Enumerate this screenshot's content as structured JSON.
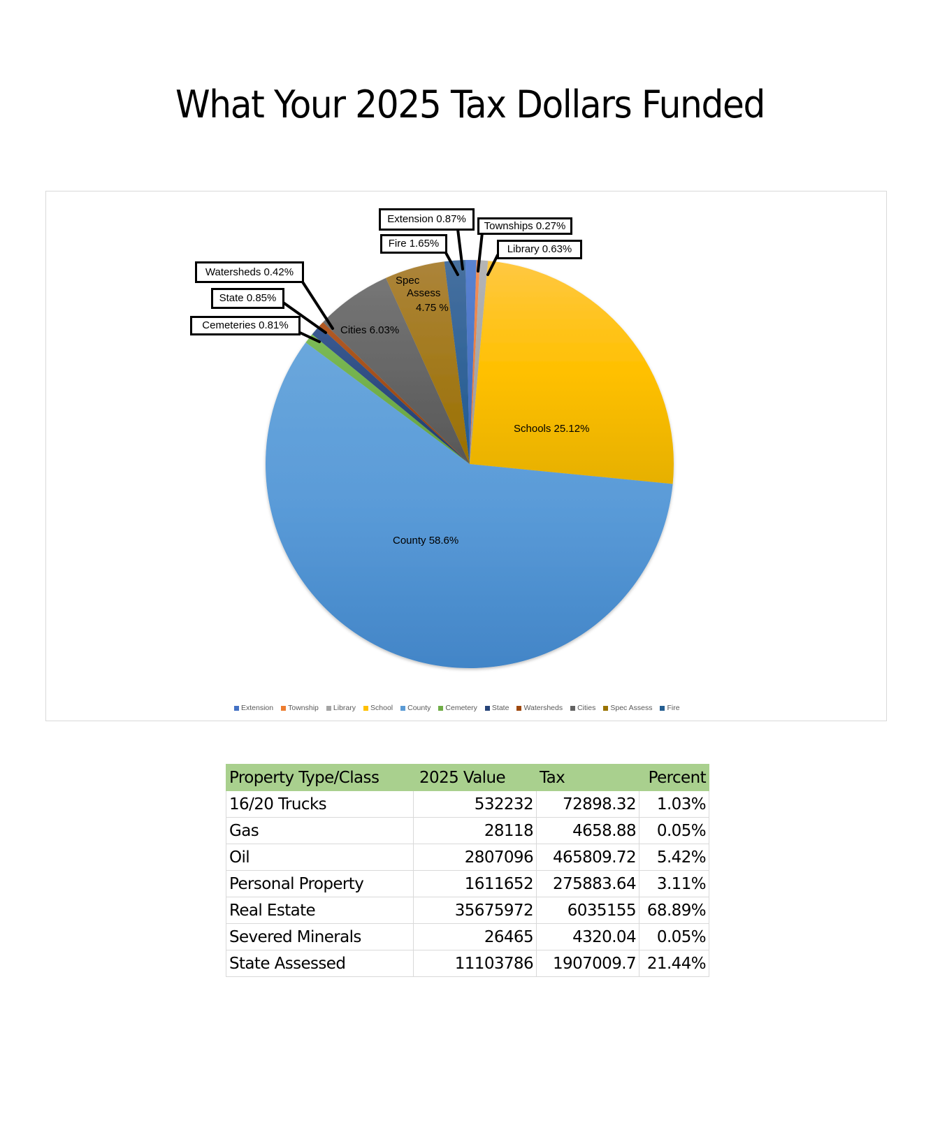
{
  "title": "What Your 2025 Tax Dollars Funded",
  "chart_data": {
    "type": "pie",
    "title": "What Your 2025 Tax Dollars Funded",
    "categories": [
      "Extension",
      "Township",
      "Library",
      "School",
      "County",
      "Cemetery",
      "State",
      "Watersheds",
      "Cities",
      "Spec Assess",
      "Fire"
    ],
    "values": [
      0.87,
      0.27,
      0.63,
      25.12,
      58.6,
      0.81,
      0.85,
      0.42,
      6.03,
      4.75,
      1.65
    ],
    "unit": "%",
    "colors": [
      "#4472C4",
      "#ED7D31",
      "#A5A5A5",
      "#FFC000",
      "#5B9BD5",
      "#70AD47",
      "#264478",
      "#9E480E",
      "#636363",
      "#997300",
      "#255E91"
    ],
    "data_labels": [
      "Extension 0.87%",
      "Townships 0.27%",
      "Library 0.63%",
      "Schools 25.12%",
      "County 58.6%",
      "Cemeteries 0.81%",
      "State 0.85%",
      "Watersheds 0.42%",
      "Cities 6.03%",
      "Spec Assess 4.75 %",
      "Fire 1.65%"
    ],
    "legend_position": "bottom",
    "legend": [
      "Extension",
      "Township",
      "Library",
      "School",
      "County",
      "Cemetery",
      "State",
      "Watersheds",
      "Cities",
      "Spec Assess",
      "Fire"
    ]
  },
  "labels": {
    "extension": "Extension 0.87%",
    "townships": "Townships 0.27%",
    "library": "Library 0.63%",
    "fire": "Fire 1.65%",
    "watersheds": "Watersheds 0.42%",
    "state": "State 0.85%",
    "cemeteries": "Cemeteries 0.81%",
    "cities": "Cities 6.03%",
    "spec_line1": "Spec",
    "spec_line2": "Assess",
    "spec_line3": "4.75 %",
    "schools": "Schools 25.12%",
    "county": "County 58.6%"
  },
  "legend": [
    {
      "label": "Extension",
      "color": "#4472C4"
    },
    {
      "label": "Township",
      "color": "#ED7D31"
    },
    {
      "label": "Library",
      "color": "#A5A5A5"
    },
    {
      "label": "School",
      "color": "#FFC000"
    },
    {
      "label": "County",
      "color": "#5B9BD5"
    },
    {
      "label": "Cemetery",
      "color": "#70AD47"
    },
    {
      "label": "State",
      "color": "#264478"
    },
    {
      "label": "Watersheds",
      "color": "#9E480E"
    },
    {
      "label": "Cities",
      "color": "#636363"
    },
    {
      "label": "Spec Assess",
      "color": "#997300"
    },
    {
      "label": "Fire",
      "color": "#255E91"
    }
  ],
  "table": {
    "headers": [
      "Property Type/Class",
      "2025 Value",
      "Tax",
      "Percent"
    ],
    "header_color": "#A9D08E",
    "rows": [
      [
        "16/20 Trucks",
        "532232",
        "72898.32",
        "1.03%"
      ],
      [
        "Gas",
        "28118",
        "4658.88",
        "0.05%"
      ],
      [
        "Oil",
        "2807096",
        "465809.72",
        "5.42%"
      ],
      [
        "Personal Property",
        "1611652",
        "275883.64",
        "3.11%"
      ],
      [
        "Real Estate",
        "35675972",
        "6035155",
        "68.89%"
      ],
      [
        "Severed Minerals",
        "26465",
        "4320.04",
        "0.05%"
      ],
      [
        "State Assessed",
        "11103786",
        "1907009.7",
        "21.44%"
      ]
    ]
  }
}
